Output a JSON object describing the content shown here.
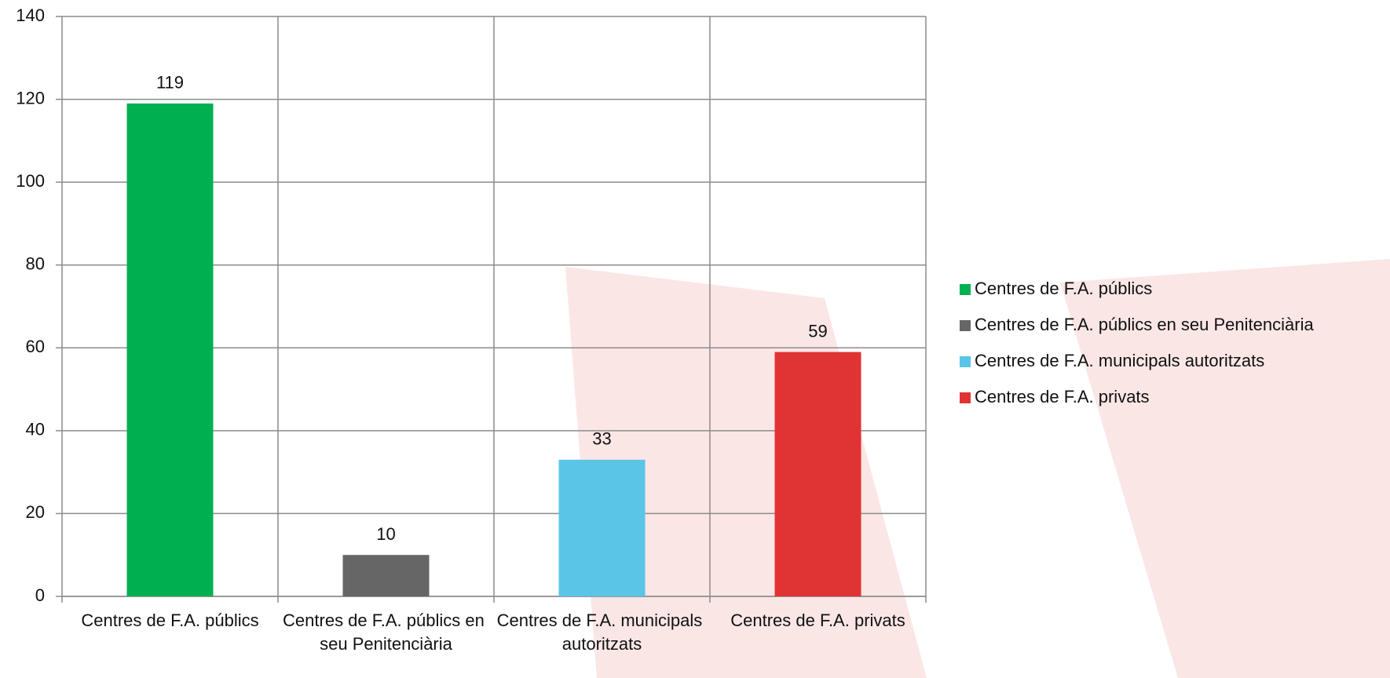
{
  "chart_data": {
    "type": "bar",
    "categories": [
      "Centres de F.A. públics",
      "Centres de F.A. públics en seu Penitenciària",
      "Centres de F.A. municipals autoritzats",
      "Centres de F.A. privats"
    ],
    "values": [
      119,
      10,
      33,
      59
    ],
    "colors": [
      "#00b050",
      "#666666",
      "#5bc5e8",
      "#e03333"
    ],
    "ylim": [
      0,
      140
    ],
    "yticks": [
      0,
      20,
      40,
      60,
      80,
      100,
      120,
      140
    ],
    "grid": true,
    "legend": "right"
  }
}
